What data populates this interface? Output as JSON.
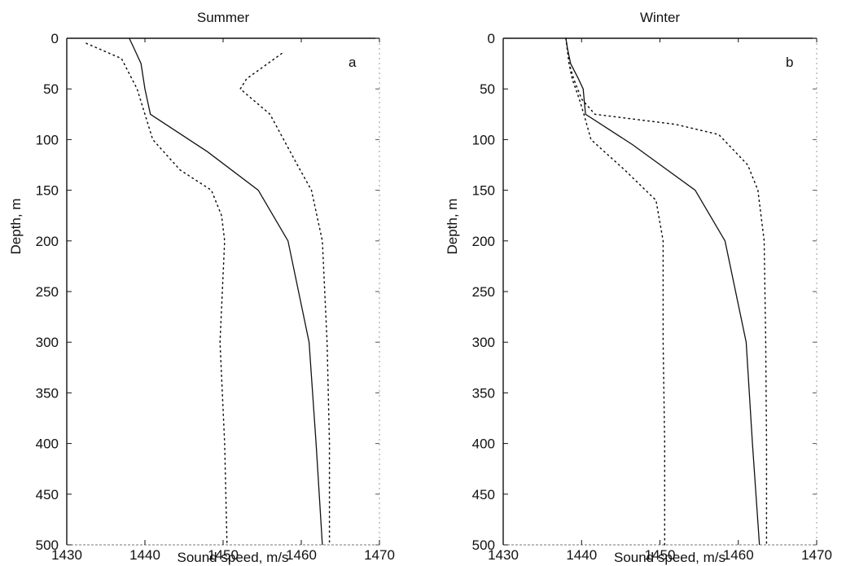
{
  "chart_data": [
    {
      "type": "line",
      "title": "Summer",
      "panel_label": "a",
      "xlabel": "Sound speed, m/s",
      "ylabel": "Depth, m",
      "xlim": [
        1430,
        1470
      ],
      "ylim": [
        0,
        500
      ],
      "y_inverted": true,
      "x_ticks": [
        1430,
        1440,
        1450,
        1460,
        1470
      ],
      "y_ticks": [
        0,
        50,
        100,
        150,
        200,
        250,
        300,
        350,
        400,
        450,
        500
      ],
      "grid": false,
      "series": [
        {
          "style": "solid",
          "points": [
            [
              1438,
              0
            ],
            [
              1438.6,
              10
            ],
            [
              1439.5,
              25
            ],
            [
              1440,
              50
            ],
            [
              1440.7,
              75
            ],
            [
              1448,
              112
            ],
            [
              1454.5,
              150
            ],
            [
              1458.3,
              200
            ],
            [
              1461,
              300
            ],
            [
              1461.9,
              400
            ],
            [
              1462.7,
              500
            ]
          ]
        },
        {
          "style": "dotted",
          "points": [
            [
              1432.5,
              5
            ],
            [
              1437,
              20
            ],
            [
              1439,
              50
            ],
            [
              1440,
              75
            ],
            [
              1441,
              100
            ],
            [
              1444.5,
              130
            ],
            [
              1448.5,
              150
            ],
            [
              1449.8,
              175
            ],
            [
              1450.2,
              200
            ],
            [
              1449.6,
              300
            ],
            [
              1450.2,
              400
            ],
            [
              1450.5,
              500
            ]
          ]
        },
        {
          "style": "dotted",
          "points": [
            [
              1457.5,
              15
            ],
            [
              1453,
              40
            ],
            [
              1452.2,
              50
            ],
            [
              1456,
              75
            ],
            [
              1459.5,
              125
            ],
            [
              1461.3,
              150
            ],
            [
              1462.7,
              200
            ],
            [
              1463.3,
              300
            ],
            [
              1463.6,
              400
            ],
            [
              1463.6,
              500
            ]
          ]
        }
      ]
    },
    {
      "type": "line",
      "title": "Winter",
      "panel_label": "b",
      "xlabel": "Sound speed, m/s",
      "ylabel": "Depth, m",
      "xlim": [
        1430,
        1470
      ],
      "ylim": [
        0,
        500
      ],
      "y_inverted": true,
      "x_ticks": [
        1430,
        1440,
        1450,
        1460,
        1470
      ],
      "y_ticks": [
        0,
        50,
        100,
        150,
        200,
        250,
        300,
        350,
        400,
        450,
        500
      ],
      "grid": false,
      "series": [
        {
          "style": "solid",
          "points": [
            [
              1438,
              0
            ],
            [
              1438.2,
              10
            ],
            [
              1438.6,
              25
            ],
            [
              1439.6,
              40
            ],
            [
              1440.2,
              50
            ],
            [
              1440.5,
              75
            ],
            [
              1446.5,
              105
            ],
            [
              1454.5,
              150
            ],
            [
              1458.3,
              200
            ],
            [
              1461,
              300
            ],
            [
              1461.8,
              400
            ],
            [
              1462.7,
              500
            ]
          ]
        },
        {
          "style": "dotted",
          "points": [
            [
              1438,
              0
            ],
            [
              1438.4,
              25
            ],
            [
              1439,
              40
            ],
            [
              1440,
              60
            ],
            [
              1441.7,
              75
            ],
            [
              1452,
              85
            ],
            [
              1457.5,
              95
            ],
            [
              1461.2,
              125
            ],
            [
              1462.5,
              150
            ],
            [
              1463.3,
              200
            ],
            [
              1463.5,
              300
            ],
            [
              1463.6,
              400
            ],
            [
              1463.6,
              500
            ]
          ]
        },
        {
          "style": "dotted",
          "points": [
            [
              1438,
              0
            ],
            [
              1438.4,
              25
            ],
            [
              1438.8,
              40
            ],
            [
              1439.7,
              60
            ],
            [
              1440.3,
              75
            ],
            [
              1441.2,
              100
            ],
            [
              1445.5,
              130
            ],
            [
              1449.5,
              160
            ],
            [
              1450.4,
              200
            ],
            [
              1450.4,
              300
            ],
            [
              1450.6,
              400
            ],
            [
              1450.6,
              500
            ]
          ]
        }
      ]
    }
  ]
}
